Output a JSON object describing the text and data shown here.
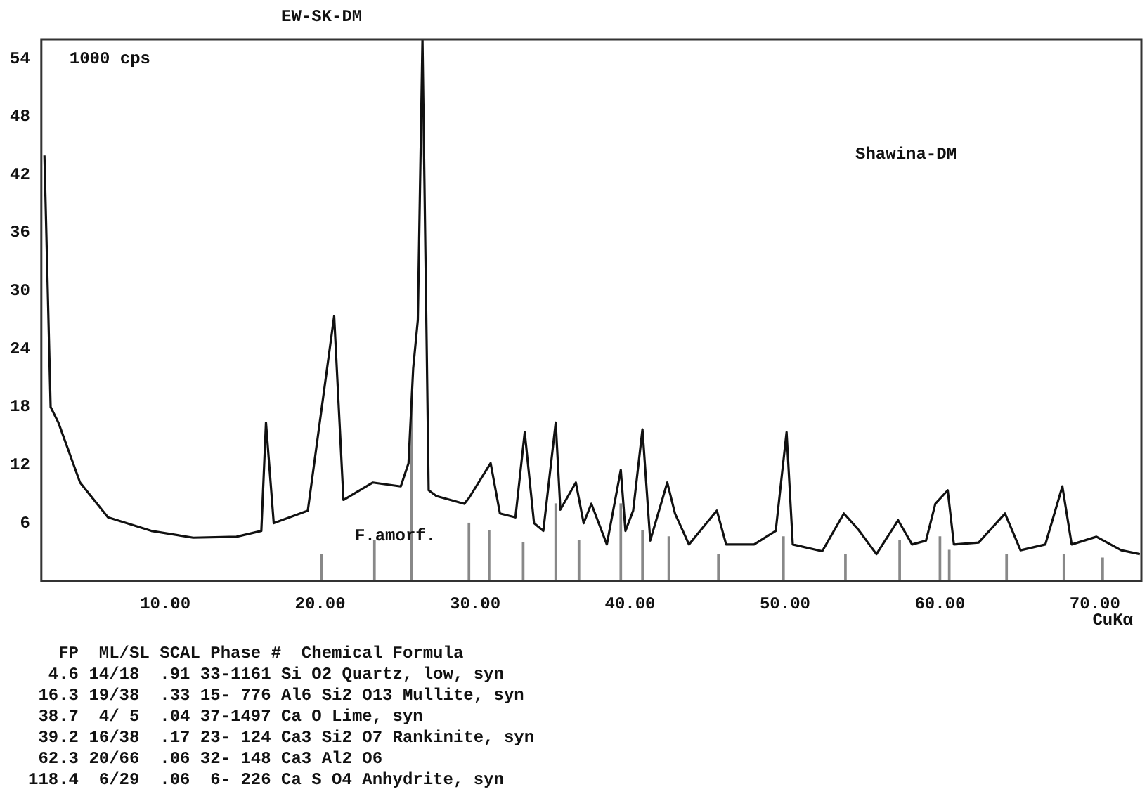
{
  "chart_data": {
    "type": "line",
    "title": "EW-SK-DM",
    "xlabel": "CuKα",
    "xlim": [
      2,
      73
    ],
    "ylim": [
      0,
      56
    ],
    "xticks": [
      {
        "value": 10,
        "label": "10.00"
      },
      {
        "value": 20,
        "label": "20.00"
      },
      {
        "value": 30,
        "label": "30.00"
      },
      {
        "value": 40,
        "label": "40.00"
      },
      {
        "value": 50,
        "label": "50.00"
      },
      {
        "value": 60,
        "label": "60.00"
      },
      {
        "value": 70,
        "label": "70.00"
      }
    ],
    "yticks": [
      6,
      12,
      18,
      24,
      30,
      36,
      42,
      48,
      54
    ],
    "grid": false,
    "legend": false,
    "marker": "none",
    "line_style": "solid",
    "series": [
      {
        "color": "#111111",
        "x": [
          2.2,
          2.6,
          3.1,
          4.5,
          6.3,
          9.1,
          11.8,
          14.6,
          16.2,
          16.5,
          17.0,
          19.2,
          20.9,
          21.5,
          23.4,
          25.2,
          25.7,
          26.0,
          26.3,
          26.6,
          27.0,
          27.5,
          29.3,
          29.6,
          31.0,
          31.6,
          32.6,
          33.2,
          33.8,
          34.4,
          35.2,
          35.5,
          36.5,
          37.0,
          37.5,
          38.5,
          39.4,
          39.7,
          40.2,
          40.8,
          41.3,
          42.4,
          42.9,
          43.8,
          45.6,
          46.2,
          48.0,
          49.4,
          50.1,
          50.5,
          52.4,
          53.8,
          54.7,
          55.9,
          57.3,
          58.2,
          59.1,
          59.7,
          60.5,
          60.9,
          62.5,
          64.2,
          65.2,
          66.8,
          67.9,
          68.5,
          70.1,
          71.7,
          72.9
        ],
        "values": [
          44,
          18,
          16.4,
          10.2,
          6.6,
          5.2,
          4.5,
          4.6,
          5.2,
          16.4,
          6,
          7.3,
          27.4,
          8.4,
          10.2,
          9.8,
          12.2,
          22,
          27,
          56,
          9.4,
          8.8,
          8,
          8.6,
          12.2,
          7,
          6.6,
          15.4,
          6,
          5.2,
          16.4,
          7.4,
          10.2,
          6,
          8,
          3.8,
          11.5,
          5.2,
          7.3,
          15.7,
          4.2,
          10.2,
          7,
          3.8,
          7.3,
          3.8,
          3.8,
          5.2,
          15.4,
          3.8,
          3.1,
          7,
          5.4,
          2.8,
          6.3,
          3.8,
          4.2,
          8,
          9.4,
          3.8,
          4,
          7,
          3.2,
          3.8,
          9.8,
          3.8,
          4.6,
          3.2,
          2.8
        ]
      },
      {
        "type": "bar",
        "color": "#888888",
        "x": [
          20.1,
          23.5,
          25.9,
          29.6,
          30.9,
          33.1,
          35.2,
          36.7,
          39.4,
          40.8,
          42.5,
          45.7,
          49.9,
          53.9,
          57.4,
          60.0,
          60.6,
          64.3,
          68.0,
          70.5
        ],
        "values": [
          2.8,
          4.2,
          18.2,
          6,
          5.2,
          4,
          8,
          4.2,
          8,
          5.2,
          4.6,
          2.8,
          4.6,
          2.8,
          4.2,
          4.6,
          3.2,
          2.8,
          2.8,
          2.4
        ]
      }
    ],
    "annotations": [
      "1000 cps",
      "Shawina-DM",
      "F.amorf.",
      "   FP  ML/SL SCAL Phase #  Chemical Formula",
      "  4.6 14/18  .91 33-1161 Si O2 Quartz, low, syn",
      " 16.3 19/38  .33 15- 776 Al6 Si2 O13 Mullite, syn",
      " 38.7  4/ 5  .04 37-1497 Ca O Lime, syn",
      " 39.2 16/38  .17 23- 124 Ca3 Si2 O7 Rankinite, syn",
      " 62.3 20/66  .06 32- 148 Ca3 Al2 O6",
      "118.4  6/29  .06  6- 226 Ca S O4 Anhydrite, syn"
    ]
  }
}
